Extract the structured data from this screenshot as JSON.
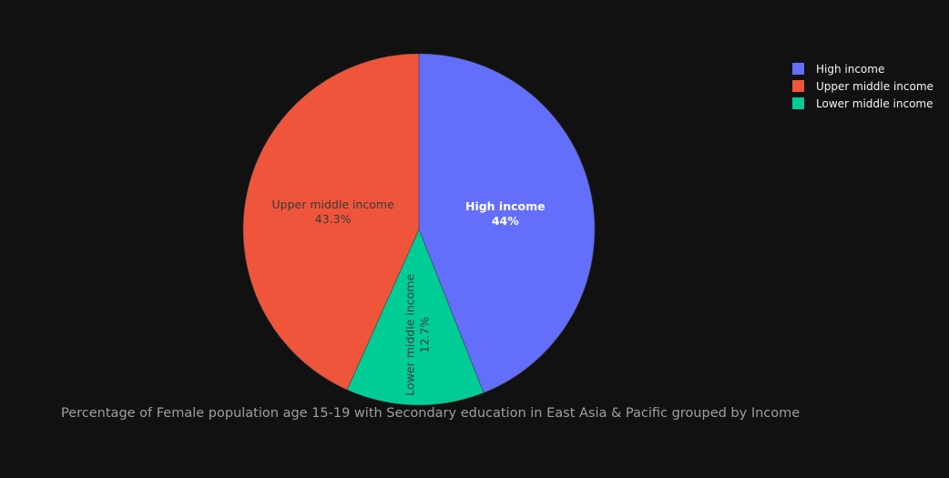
{
  "chart_data": {
    "type": "pie",
    "title": "Percentage of Female population age 15-19 with Secondary education in East Asia & Pacific grouped by Income",
    "slices": [
      {
        "label": "High income",
        "value": 44.0,
        "percent_label": "44%",
        "color": "#636efa",
        "text_color": "#ffffff"
      },
      {
        "label": "Lower middle income",
        "value": 12.7,
        "percent_label": "12.7%",
        "color": "#00cc96",
        "text_color": "#3a3a3a"
      },
      {
        "label": "Upper middle income",
        "value": 43.3,
        "percent_label": "43.3%",
        "color": "#ef553b",
        "text_color": "#3a3a3a"
      }
    ],
    "legend": {
      "position": "top-right",
      "entries": [
        {
          "label": "High income",
          "color": "#636efa"
        },
        {
          "label": "Upper middle income",
          "color": "#ef553b"
        },
        {
          "label": "Lower middle income",
          "color": "#00cc96"
        }
      ]
    },
    "background_color": "#111111"
  }
}
